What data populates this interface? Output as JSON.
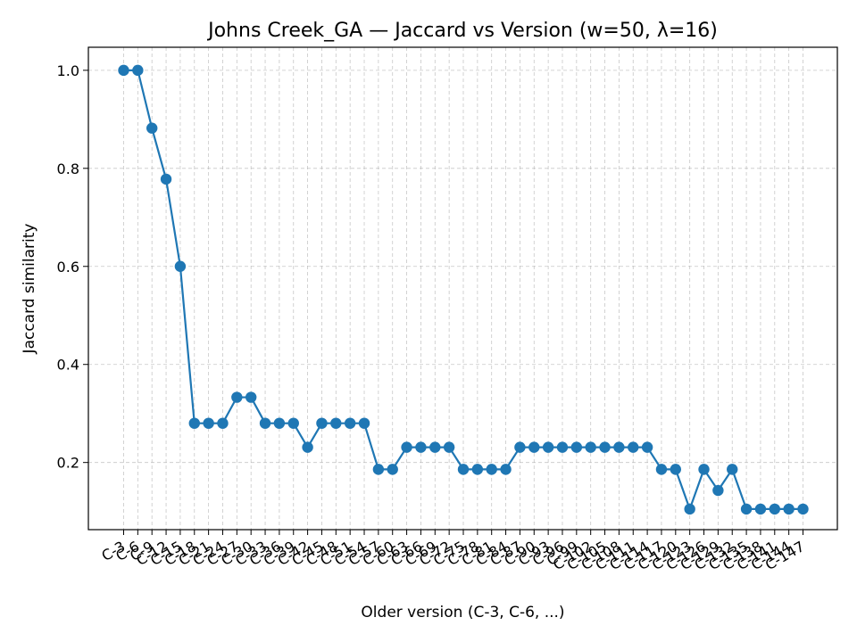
{
  "chart_data": {
    "type": "line",
    "title": "Johns Creek_GA — Jaccard vs Version (w=50, λ=16)",
    "xlabel": "Older version (C-3, C-6, ...)",
    "ylabel": "Jaccard similarity",
    "categories": [
      "C-3",
      "C-6",
      "C-9",
      "C-12",
      "C-15",
      "C-18",
      "C-21",
      "C-24",
      "C-27",
      "C-30",
      "C-33",
      "C-36",
      "C-39",
      "C-42",
      "C-45",
      "C-48",
      "C-51",
      "C-54",
      "C-57",
      "C-60",
      "C-63",
      "C-66",
      "C-69",
      "C-72",
      "C-75",
      "C-78",
      "C-81",
      "C-84",
      "C-87",
      "C-90",
      "C-93",
      "C-96",
      "C-99",
      "C-102",
      "C-105",
      "C-108",
      "C-111",
      "C-114",
      "C-117",
      "C-120",
      "C-123",
      "C-126",
      "C-129",
      "C-132",
      "C-135",
      "C-138",
      "C-141",
      "C-144",
      "C-147"
    ],
    "series": [
      {
        "values": [
          1.0,
          1.0,
          0.882,
          0.778,
          0.6,
          0.28,
          0.28,
          0.28,
          0.333,
          0.333,
          0.28,
          0.28,
          0.28,
          0.231,
          0.28,
          0.28,
          0.28,
          0.28,
          0.186,
          0.186,
          0.231,
          0.231,
          0.231,
          0.231,
          0.186,
          0.186,
          0.186,
          0.186,
          0.231,
          0.231,
          0.231,
          0.231,
          0.231,
          0.231,
          0.231,
          0.231,
          0.231,
          0.231,
          0.186,
          0.186,
          0.105,
          0.186,
          0.143,
          0.186,
          0.105,
          0.105,
          0.105,
          0.105,
          0.105
        ],
        "color": "#1f77b4"
      }
    ],
    "yticks": [
      "0.2",
      "0.4",
      "0.6",
      "0.8",
      "1.0"
    ],
    "ylim": [
      0.063,
      1.047
    ],
    "grid": true,
    "line_style": "solid",
    "marker": "circle"
  }
}
